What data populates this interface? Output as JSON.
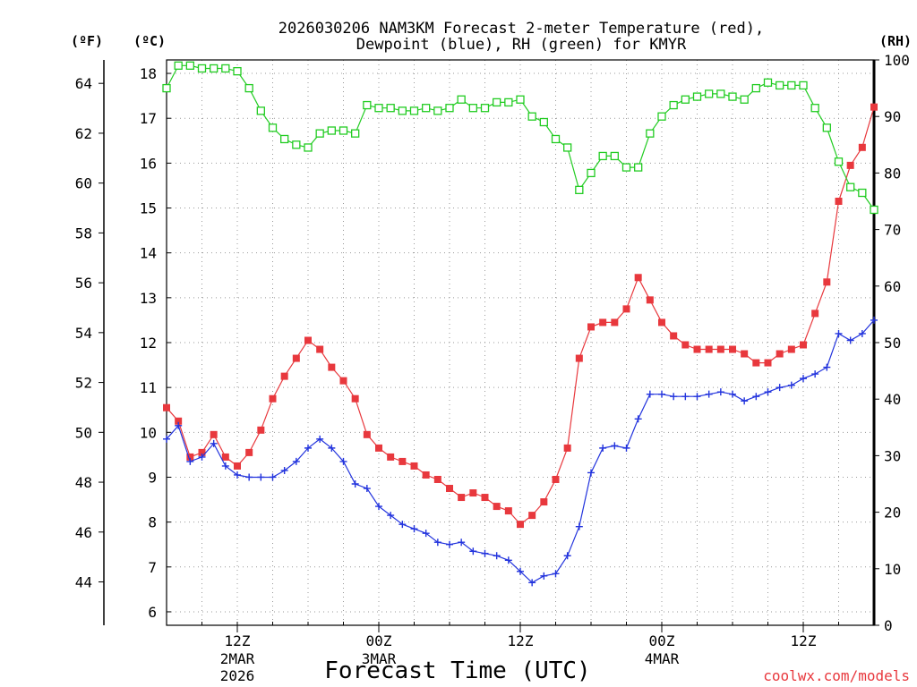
{
  "title_line1": "2026030206 NAM3KM Forecast 2-meter Temperature (red),",
  "title_line2": "Dewpoint (blue), RH (green) for KMYR",
  "unit_f": "(ºF)",
  "unit_c": "(ºC)",
  "unit_rh": "(RH)",
  "credit": "coolwx.com/models",
  "colors": {
    "temp": "#e8383d",
    "dew": "#2233dd",
    "rh": "#22cc22",
    "grid": "#999999"
  },
  "chart_data": {
    "type": "line",
    "title": "2026030206 NAM3KM Forecast 2-meter Temperature (red), Dewpoint (blue), RH (green) for KMYR",
    "xlabel": "Forecast Time (UTC)",
    "x_hours": [
      0,
      1,
      2,
      3,
      4,
      5,
      6,
      7,
      8,
      9,
      10,
      11,
      12,
      13,
      14,
      15,
      16,
      17,
      18,
      19,
      20,
      21,
      22,
      23,
      24,
      25,
      26,
      27,
      28,
      29,
      30,
      31,
      32,
      33,
      34,
      35,
      36,
      37,
      38,
      39,
      40,
      41,
      42,
      43,
      44,
      45,
      46,
      47,
      48,
      49,
      50,
      51,
      52,
      53,
      54,
      55,
      56,
      57,
      58,
      59,
      60
    ],
    "x_ticks": [
      {
        "hour": 6,
        "label": "12Z",
        "sub1": "2MAR",
        "sub2": "2026"
      },
      {
        "hour": 18,
        "label": "00Z",
        "sub1": "3MAR",
        "sub2": ""
      },
      {
        "hour": 30,
        "label": "12Z",
        "sub1": "",
        "sub2": ""
      },
      {
        "hour": 42,
        "label": "00Z",
        "sub1": "4MAR",
        "sub2": ""
      },
      {
        "hour": 54,
        "label": "12Z",
        "sub1": "",
        "sub2": ""
      }
    ],
    "y_left_c": {
      "label": "(ºC)",
      "min": 5.7,
      "max": 18.3,
      "ticks": [
        6,
        7,
        8,
        9,
        10,
        11,
        12,
        13,
        14,
        15,
        16,
        17,
        18
      ]
    },
    "y_left_f": {
      "label": "(ºF)",
      "ticks": [
        44,
        46,
        48,
        50,
        52,
        54,
        56,
        58,
        60,
        62,
        64
      ]
    },
    "y_right_rh": {
      "label": "(RH)",
      "min": 0,
      "max": 100,
      "ticks": [
        0,
        10,
        20,
        30,
        40,
        50,
        60,
        70,
        80,
        90,
        100
      ]
    },
    "series": [
      {
        "name": "Temperature",
        "units": "C",
        "color": "#e8383d",
        "marker": "filled-square",
        "values": [
          10.55,
          10.25,
          9.45,
          9.55,
          9.95,
          9.45,
          9.25,
          9.55,
          10.05,
          10.75,
          11.25,
          11.65,
          12.05,
          11.85,
          11.45,
          11.15,
          10.75,
          9.95,
          9.65,
          9.45,
          9.35,
          9.25,
          9.05,
          8.95,
          8.75,
          8.55,
          8.65,
          8.55,
          8.35,
          8.25,
          7.95,
          8.15,
          8.45,
          8.95,
          9.65,
          11.65,
          12.35,
          12.45,
          12.45,
          12.75,
          13.45,
          12.95,
          12.45,
          12.15,
          11.95,
          11.85,
          11.85,
          11.85,
          11.85,
          11.75,
          11.55,
          11.55,
          11.75,
          11.85,
          11.95,
          12.65,
          13.35,
          15.15,
          15.95,
          16.35,
          17.25
        ]
      },
      {
        "name": "Dewpoint",
        "units": "C",
        "color": "#2233dd",
        "marker": "plus",
        "values": [
          9.85,
          10.15,
          9.35,
          9.45,
          9.75,
          9.25,
          9.05,
          9.0,
          9.0,
          9.0,
          9.15,
          9.35,
          9.65,
          9.85,
          9.65,
          9.35,
          8.85,
          8.75,
          8.35,
          8.15,
          7.95,
          7.85,
          7.75,
          7.55,
          7.5,
          7.55,
          7.35,
          7.3,
          7.25,
          7.15,
          6.9,
          6.65,
          6.8,
          6.85,
          7.25,
          7.9,
          9.1,
          9.65,
          9.7,
          9.65,
          10.3,
          10.85,
          10.85,
          10.8,
          10.8,
          10.8,
          10.85,
          10.9,
          10.85,
          10.7,
          10.8,
          10.9,
          11.0,
          11.05,
          11.2,
          11.3,
          11.45,
          12.2,
          12.05,
          12.2,
          12.5
        ]
      },
      {
        "name": "RH",
        "units": "%",
        "color": "#22cc22",
        "marker": "open-square",
        "values": [
          95,
          99,
          99,
          98.5,
          98.5,
          98.5,
          98,
          95,
          91,
          88,
          86,
          85,
          84.5,
          87,
          87.5,
          87.5,
          87,
          92,
          91.5,
          91.5,
          91,
          91,
          91.5,
          91,
          91.5,
          93,
          91.5,
          91.5,
          92.5,
          92.5,
          93,
          90,
          89,
          86,
          84.5,
          77,
          80,
          83,
          83,
          81,
          81,
          87,
          90,
          92,
          93,
          93.5,
          94,
          94,
          93.5,
          93,
          95,
          96,
          95.5,
          95.5,
          95.5,
          91.5,
          88,
          82,
          77.5,
          76.5,
          73.5
        ]
      }
    ]
  }
}
